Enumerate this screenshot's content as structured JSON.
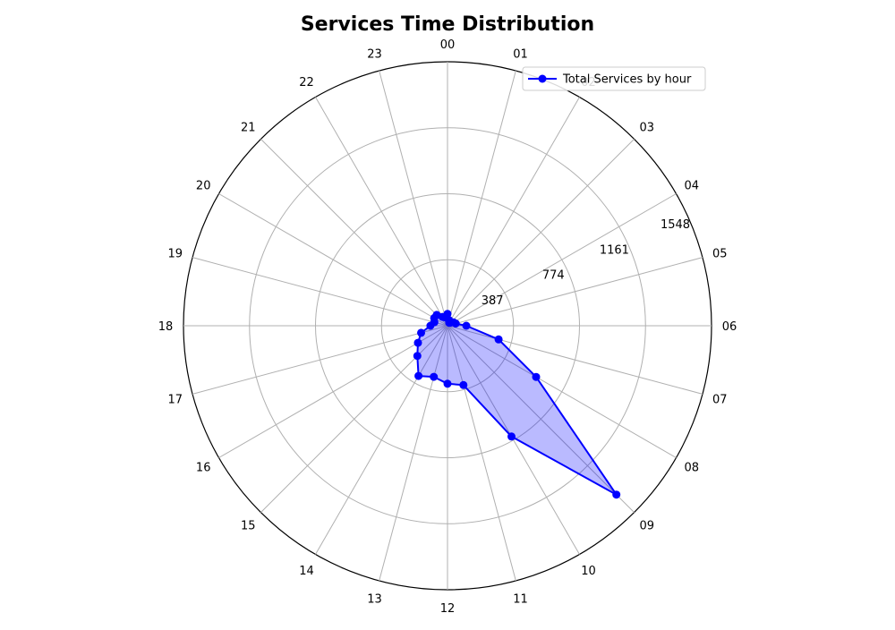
{
  "chart_data": {
    "type": "radar",
    "title": "Services Time Distribution",
    "categories": [
      "00",
      "01",
      "02",
      "03",
      "04",
      "05",
      "06",
      "07",
      "08",
      "09",
      "10",
      "11",
      "12",
      "13",
      "14",
      "15",
      "16",
      "17",
      "18",
      "19",
      "20",
      "21",
      "22",
      "23"
    ],
    "series": [
      {
        "name": "Total Services by hour",
        "values": [
          70,
          35,
          20,
          25,
          40,
          50,
          110,
          310,
          600,
          1400,
          750,
          360,
          340,
          310,
          340,
          250,
          200,
          160,
          100,
          80,
          90,
          90,
          60,
          50
        ]
      }
    ],
    "r_ticks": [
      387,
      774,
      1161,
      1548
    ],
    "rlim": [
      0,
      1548
    ],
    "grid": true,
    "legend": "top-right",
    "colors": {
      "line": "#0000ff",
      "fill": "#0000ff",
      "grid": "#b0b0b0",
      "frame": "#000000"
    }
  }
}
